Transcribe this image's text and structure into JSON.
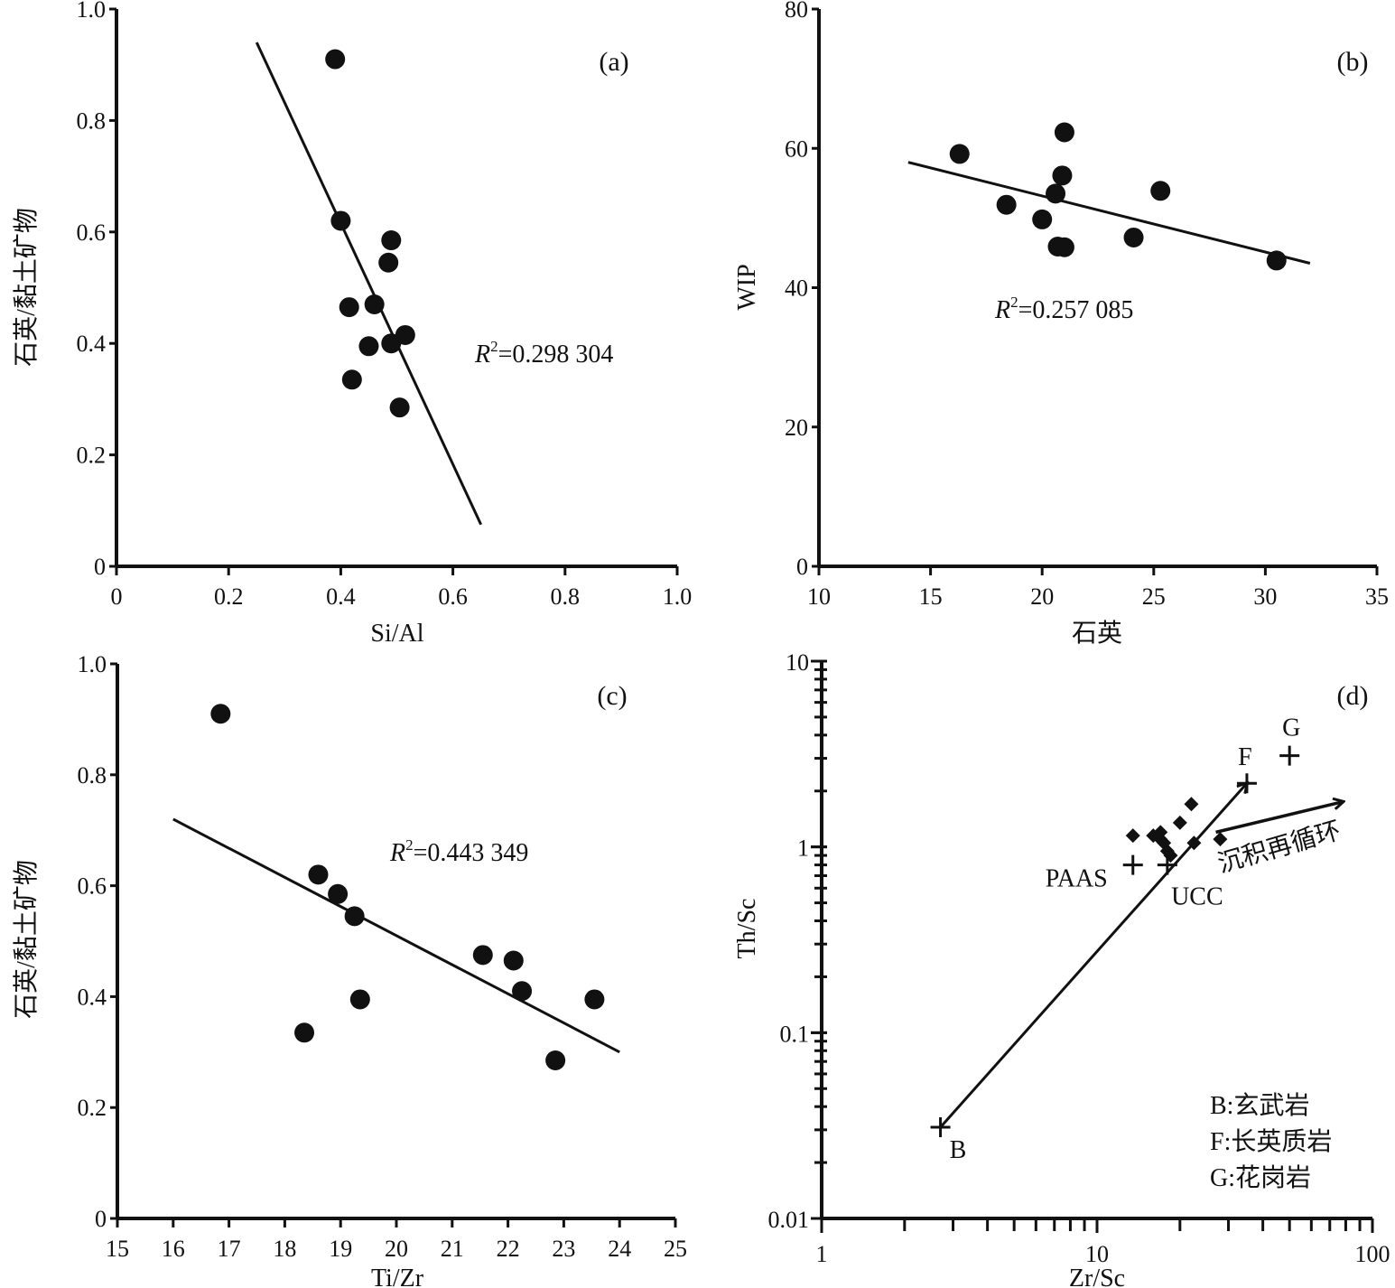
{
  "chart_data": [
    {
      "id": "a",
      "type": "scatter",
      "panel_label": "(a)",
      "xlabel": "Si/Al",
      "ylabel": "石英/黏土矿物",
      "xlim": [
        0,
        1.0
      ],
      "ylim": [
        0,
        1.0
      ],
      "xticks": [
        "0",
        "0.2",
        "0.4",
        "0.6",
        "0.8",
        "1.0"
      ],
      "yticks": [
        "0",
        "0.2",
        "0.4",
        "0.6",
        "0.8",
        "1.0"
      ],
      "annotation": {
        "r_symbol": "R",
        "sup": "2",
        "value": "=0.298 304"
      },
      "points": [
        [
          0.39,
          0.91
        ],
        [
          0.4,
          0.62
        ],
        [
          0.49,
          0.585
        ],
        [
          0.485,
          0.545
        ],
        [
          0.415,
          0.465
        ],
        [
          0.46,
          0.47
        ],
        [
          0.45,
          0.395
        ],
        [
          0.49,
          0.4
        ],
        [
          0.515,
          0.415
        ],
        [
          0.42,
          0.335
        ],
        [
          0.505,
          0.285
        ]
      ],
      "fit_line": [
        [
          0.25,
          0.94
        ],
        [
          0.65,
          0.075
        ]
      ],
      "grid": false
    },
    {
      "id": "b",
      "type": "scatter",
      "panel_label": "(b)",
      "xlabel": "石英",
      "ylabel": "WIP",
      "xlim": [
        10,
        35
      ],
      "ylim": [
        0,
        80
      ],
      "xticks": [
        "10",
        "15",
        "20",
        "25",
        "30",
        "35"
      ],
      "yticks": [
        "0",
        "20",
        "40",
        "60",
        "80"
      ],
      "annotation": {
        "r_symbol": "R",
        "sup": "2",
        "value": "=0.257 085"
      },
      "points": [
        [
          16.3,
          59.2
        ],
        [
          18.4,
          51.9
        ],
        [
          20.0,
          49.8
        ],
        [
          20.6,
          53.5
        ],
        [
          20.9,
          56.1
        ],
        [
          21.0,
          62.3
        ],
        [
          20.7,
          45.9
        ],
        [
          21.0,
          45.8
        ],
        [
          24.1,
          47.2
        ],
        [
          25.3,
          53.9
        ],
        [
          30.5,
          43.9
        ]
      ],
      "fit_line": [
        [
          14,
          58.0
        ],
        [
          32,
          43.5
        ]
      ],
      "grid": false
    },
    {
      "id": "c",
      "type": "scatter",
      "panel_label": "(c)",
      "xlabel": "Ti/Zr",
      "ylabel": "石英/黏土矿物",
      "xlim": [
        15,
        25
      ],
      "ylim": [
        0,
        1.0
      ],
      "xticks": [
        "15",
        "16",
        "17",
        "18",
        "19",
        "20",
        "21",
        "22",
        "23",
        "24",
        "25"
      ],
      "yticks": [
        "0",
        "0.2",
        "0.4",
        "0.6",
        "0.8",
        "1.0"
      ],
      "annotation": {
        "r_symbol": "R",
        "sup": "2",
        "value": "=0.443 349"
      },
      "points": [
        [
          16.85,
          0.91
        ],
        [
          18.6,
          0.62
        ],
        [
          18.95,
          0.585
        ],
        [
          19.25,
          0.545
        ],
        [
          19.35,
          0.395
        ],
        [
          18.35,
          0.335
        ],
        [
          21.55,
          0.475
        ],
        [
          22.1,
          0.465
        ],
        [
          22.25,
          0.41
        ],
        [
          22.85,
          0.285
        ],
        [
          23.55,
          0.395
        ]
      ],
      "fit_line": [
        [
          16,
          0.72
        ],
        [
          24,
          0.3
        ]
      ],
      "grid": false
    },
    {
      "id": "d",
      "type": "scatter",
      "panel_label": "(d)",
      "xlabel": "Zr/Sc",
      "ylabel": "Th/Sc",
      "xscale": "log",
      "yscale": "log",
      "xlim": [
        1,
        100
      ],
      "ylim": [
        0.01,
        10
      ],
      "xticks": [
        "1",
        "10",
        "100"
      ],
      "yticks": [
        "0.01",
        "0.1",
        "1",
        "10"
      ],
      "samples": [
        [
          13.5,
          1.15
        ],
        [
          16,
          1.15
        ],
        [
          17,
          1.1
        ],
        [
          17.5,
          1.05
        ],
        [
          18,
          0.95
        ],
        [
          18.5,
          0.9
        ],
        [
          20,
          1.35
        ],
        [
          22,
          1.7
        ],
        [
          22.5,
          1.05
        ],
        [
          28,
          1.1
        ],
        [
          17,
          1.2
        ]
      ],
      "references": [
        {
          "name": "B",
          "x": 2.7,
          "y": 0.031
        },
        {
          "name": "F",
          "x": 35,
          "y": 2.2
        },
        {
          "name": "G",
          "x": 50,
          "y": 3.1
        },
        {
          "name": "PAAS",
          "x": 13.5,
          "y": 0.8
        },
        {
          "name": "UCC",
          "x": 18,
          "y": 0.8
        }
      ],
      "trend_arrow": {
        "from": [
          2.7,
          0.031
        ],
        "to": [
          35,
          2.2
        ]
      },
      "recycling_arrow": {
        "from": [
          27,
          1.2
        ],
        "to": [
          78,
          1.75
        ],
        "label": "沉积再循环"
      },
      "legend": [
        "B:玄武岩",
        "F:长英质岩",
        "G:花岗岩"
      ],
      "legend_position": "bottom-right",
      "grid": false
    }
  ]
}
